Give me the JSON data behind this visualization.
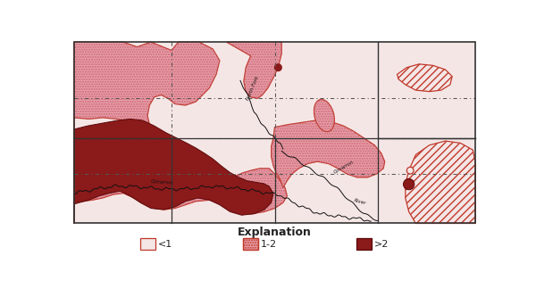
{
  "title": "Explanation",
  "legend_labels": [
    "<1",
    "1-2",
    ">2"
  ],
  "c_lt1": "#f5e6e6",
  "c_12_fill": "#e8a0a8",
  "c_12_edge": "#c0392b",
  "c_gt2": "#8b1a1a",
  "c_gt2_edge": "#5a0808",
  "c_border": "#333333",
  "c_dash": "#555555"
}
